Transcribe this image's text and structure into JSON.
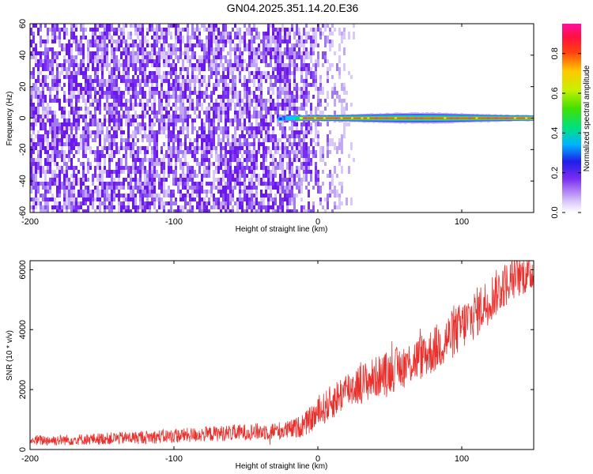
{
  "title": "GN04.2025.351.14.20.E36",
  "colors": {
    "snr_line": "#e8302c",
    "background_speckle": "#7a2cf0",
    "colormap": [
      "#ffffff",
      "#c8a8f8",
      "#7a2cf0",
      "#3020e8",
      "#00c8ff",
      "#00e070",
      "#60e000",
      "#f0f000",
      "#ff8000",
      "#ff1010",
      "#ff10a0"
    ]
  },
  "chart_data": [
    {
      "type": "heatmap",
      "xlabel": "Height of straight line (km)",
      "ylabel": "Frequency (Hz)",
      "xlim": [
        -200,
        150
      ],
      "ylim": [
        -60,
        60
      ],
      "x_ticks": [
        "-200",
        "-100",
        "0",
        "100"
      ],
      "y_ticks": [
        "-60",
        "-40",
        "-20",
        "0",
        "20",
        "40",
        "60"
      ],
      "features": {
        "noise_floor_region_km": [
          -200,
          20
        ],
        "fading_noise_region_km": [
          -15,
          25
        ],
        "signal_frequency_hz": 0,
        "signal_start_km": -27,
        "signal_broadening_peak_km": 70
      },
      "colorbar": {
        "label": "Normalized spectral amplitude",
        "ticks": [
          "0.0",
          "0.2",
          "0.4",
          "0.6",
          "0.8"
        ],
        "range": [
          0,
          0.95
        ]
      },
      "grid": false
    },
    {
      "type": "line",
      "xlabel": "Height of straight line (km)",
      "ylabel": "SNR (10 * v/v)",
      "xlim": [
        -200,
        150
      ],
      "ylim": [
        0,
        6300
      ],
      "x_ticks": [
        "-200",
        "-100",
        "0",
        "100"
      ],
      "y_ticks": [
        "0",
        "2000",
        "4000",
        "6000"
      ],
      "series": [
        {
          "x": [
            -200,
            -175,
            -150,
            -125,
            -100,
            -75,
            -50,
            -30,
            -20,
            -10,
            0,
            10,
            20,
            40,
            60,
            80,
            100,
            110,
            120,
            130,
            140,
            150
          ],
          "y": [
            300,
            320,
            360,
            400,
            450,
            520,
            580,
            620,
            650,
            800,
            1200,
            1600,
            2000,
            2400,
            2800,
            3300,
            4100,
            4550,
            5050,
            5500,
            5800,
            5900
          ],
          "spread": [
            180,
            180,
            200,
            220,
            240,
            260,
            280,
            300,
            320,
            380,
            500,
            600,
            650,
            700,
            750,
            800,
            850,
            850,
            800,
            750,
            700,
            650
          ]
        }
      ],
      "grid": false
    }
  ]
}
